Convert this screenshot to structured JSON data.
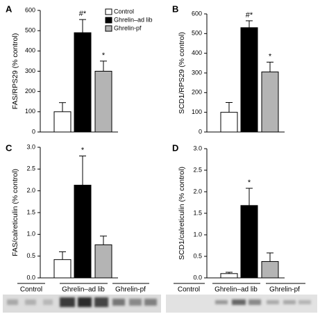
{
  "chart_data": [
    {
      "type": "bar",
      "panel": "A",
      "y_label": "FAS/RPS29 (% control)",
      "values": [
        100,
        490,
        300
      ],
      "errors": [
        45,
        65,
        50
      ],
      "annotations": [
        null,
        "#*",
        "*"
      ],
      "ylim": [
        0,
        600
      ],
      "yticks": [
        0,
        100,
        200,
        300,
        400,
        500,
        600
      ]
    },
    {
      "type": "bar",
      "panel": "B",
      "y_label": "SCD1/RPS29 (% control)",
      "values": [
        100,
        530,
        305
      ],
      "errors": [
        50,
        35,
        50
      ],
      "annotations": [
        null,
        "#*",
        "*"
      ],
      "ylim": [
        0,
        600
      ],
      "yticks": [
        0,
        100,
        200,
        300,
        400,
        500,
        600
      ]
    },
    {
      "type": "bar",
      "panel": "C",
      "y_label": "FAS/calreticulin (% control)",
      "values": [
        0.42,
        2.13,
        0.76
      ],
      "errors": [
        0.18,
        0.67,
        0.2
      ],
      "annotations": [
        null,
        "*",
        null
      ],
      "ylim": [
        0,
        3
      ],
      "yticks": [
        {
          "value": 0,
          "label": "0.0"
        },
        0.5,
        {
          "value": 1,
          "label": "1.0"
        },
        1.5,
        {
          "value": 2,
          "label": "2.0"
        },
        2.5,
        {
          "value": 3,
          "label": "3.0"
        }
      ]
    },
    {
      "type": "bar",
      "panel": "D",
      "y_label": "SCD1/calreticulin (% control)",
      "values": [
        0.1,
        1.68,
        0.38
      ],
      "errors": [
        0.03,
        0.4,
        0.2
      ],
      "annotations": [
        null,
        "*",
        null
      ],
      "ylim": [
        0,
        3
      ],
      "yticks": [
        {
          "value": 0,
          "label": "0.0"
        },
        0.5,
        {
          "value": 1,
          "label": "1.0"
        },
        1.5,
        {
          "value": 2,
          "label": "2.0"
        },
        2.5,
        {
          "value": 3,
          "label": "3.0"
        }
      ]
    }
  ],
  "legend": [
    {
      "name": "Control",
      "color": "#ffffff"
    },
    {
      "name": "Ghrelin–ad lib",
      "color": "#000000"
    },
    {
      "name": "Ghrelin-pf",
      "color": "#b4b4b4"
    }
  ],
  "blots": [
    {
      "labels": [
        "Control",
        "Ghrelin–ad lib",
        "Ghrelin-pf"
      ]
    },
    {
      "labels": [
        "Control",
        "Ghrelin–ad lib",
        "Ghrelin-pf"
      ]
    }
  ]
}
